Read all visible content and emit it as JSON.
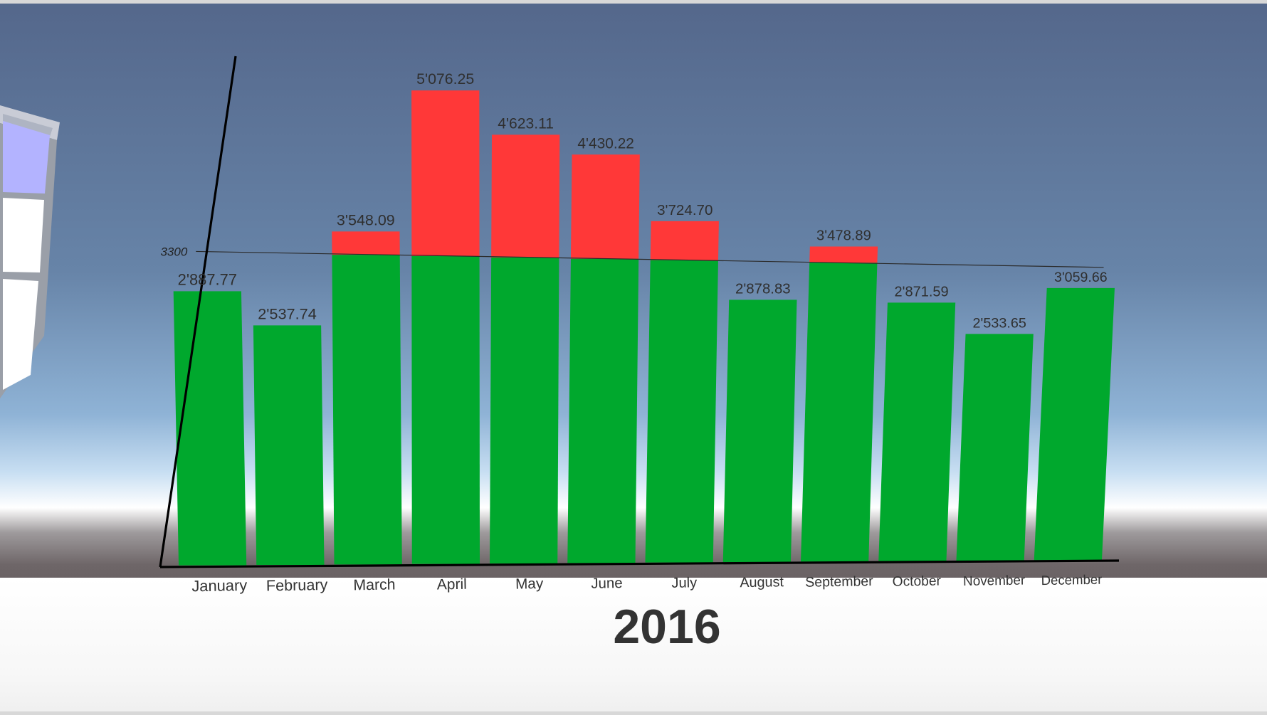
{
  "chart_data": {
    "type": "bar",
    "title": "2016",
    "xlabel": "",
    "ylabel": "",
    "threshold": 3300,
    "threshold_label": "3300",
    "categories": [
      "January",
      "February",
      "March",
      "April",
      "May",
      "June",
      "July",
      "August",
      "September",
      "October",
      "November",
      "December"
    ],
    "values": [
      2887.77,
      2537.74,
      3548.09,
      5076.25,
      4623.11,
      4430.22,
      3724.7,
      2878.83,
      3478.89,
      2871.59,
      2533.65,
      3059.66
    ],
    "labels": [
      "2'887.77",
      "2'537.74",
      "3'548.09",
      "5'076.25",
      "4'623.11",
      "4'430.22",
      "3'724.70",
      "2'878.83",
      "3'478.89",
      "2'871.59",
      "2'533.65",
      "3'059.66"
    ],
    "colors": {
      "below_threshold": "#00a82d",
      "above_threshold": "#ff3838",
      "axis": "#000000"
    },
    "grid": false,
    "legend": "none"
  }
}
